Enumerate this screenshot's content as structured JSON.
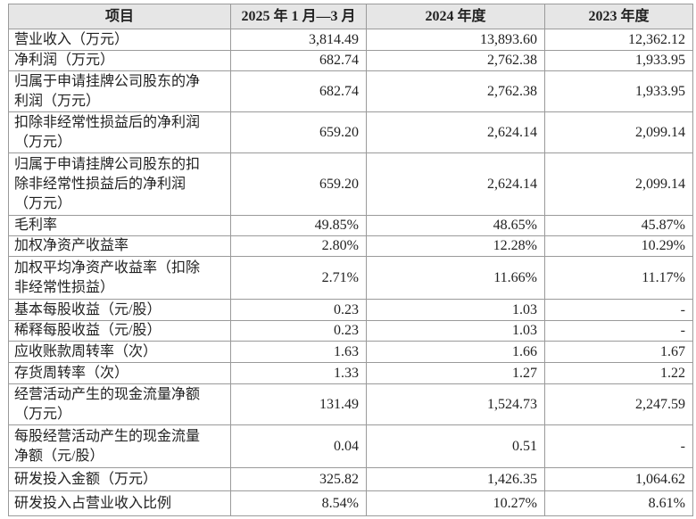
{
  "table": {
    "header": [
      "项目",
      "2025 年 1 月—3 月",
      "2024 年度",
      "2023 年度"
    ],
    "rows": [
      [
        [
          "营业收入（万元）"
        ],
        "3,814.49",
        "13,893.60",
        "12,362.12"
      ],
      [
        [
          "净利润（万元）"
        ],
        "682.74",
        "2,762.38",
        "1,933.95"
      ],
      [
        [
          "归属于申请挂牌公司股东的净",
          "利润（万元）"
        ],
        "682.74",
        "2,762.38",
        "1,933.95"
      ],
      [
        [
          "扣除非经常性损益后的净利润",
          "（万元）"
        ],
        "659.20",
        "2,624.14",
        "2,099.14"
      ],
      [
        [
          "归属于申请挂牌公司股东的扣",
          "除非经常性损益后的净利润",
          "（万元）"
        ],
        "659.20",
        "2,624.14",
        "2,099.14"
      ],
      [
        [
          "毛利率"
        ],
        "49.85%",
        "48.65%",
        "45.87%"
      ],
      [
        [
          "加权净资产收益率"
        ],
        "2.80%",
        "12.28%",
        "10.29%"
      ],
      [
        [
          "加权平均净资产收益率（扣除",
          "非经常性损益）"
        ],
        "2.71%",
        "11.66%",
        "11.17%"
      ],
      [
        [
          "基本每股收益（元/股）"
        ],
        "0.23",
        "1.03",
        "-"
      ],
      [
        [
          "稀释每股收益（元/股）"
        ],
        "0.23",
        "1.03",
        "-"
      ],
      [
        [
          "应收账款周转率（次）"
        ],
        "1.63",
        "1.66",
        "1.67"
      ],
      [
        [
          "存货周转率（次）"
        ],
        "1.33",
        "1.27",
        "1.22"
      ],
      [
        [
          "经营活动产生的现金流量净额",
          "（万元）"
        ],
        "131.49",
        "1,524.73",
        "2,247.59"
      ],
      [
        [
          "每股经营活动产生的现金流量",
          "净额（元/股）"
        ],
        "0.04",
        "0.51",
        "-"
      ],
      [
        [
          "研发投入金额（万元）"
        ],
        "325.82",
        "1,426.35",
        "1,064.62"
      ],
      [
        [
          "研发投入占营业收入比例"
        ],
        "8.54%",
        "10.27%",
        "8.61%"
      ]
    ]
  }
}
